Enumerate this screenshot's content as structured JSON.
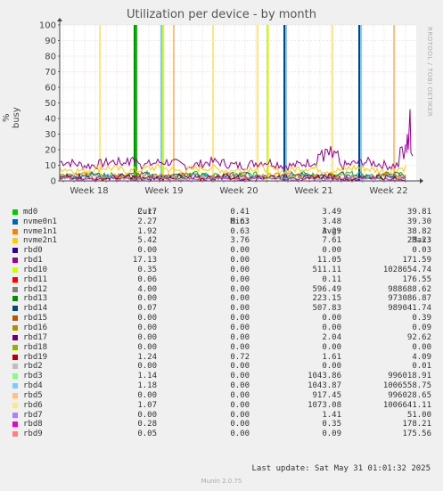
{
  "chart_data": {
    "type": "line",
    "title": "Utilization per device - by month",
    "ylabel": "% busy",
    "ylim": [
      0,
      100
    ],
    "yticks": [
      0,
      10,
      20,
      30,
      40,
      50,
      60,
      70,
      80,
      90,
      100
    ],
    "xticks": [
      "Week 18",
      "Week 19",
      "Week 20",
      "Week 21",
      "Week 22"
    ],
    "grid": true,
    "legend_columns": [
      "Cur:",
      "Min:",
      "Avg:",
      "Max:"
    ],
    "series": [
      {
        "name": "md0",
        "color": "#00cc00",
        "cur": "2.17",
        "min": "0.41",
        "avg": "3.49",
        "max": "39.81"
      },
      {
        "name": "nvme0n1",
        "color": "#0066b3",
        "cur": "2.27",
        "min": "0.63",
        "avg": "3.48",
        "max": "39.30"
      },
      {
        "name": "nvme1n1",
        "color": "#ff8000",
        "cur": "1.92",
        "min": "0.63",
        "avg": "3.29",
        "max": "38.82"
      },
      {
        "name": "nvme2n1",
        "color": "#ffcc00",
        "cur": "5.42",
        "min": "3.76",
        "avg": "7.61",
        "max": "23.23"
      },
      {
        "name": "rbd0",
        "color": "#330099",
        "cur": "0.00",
        "min": "0.00",
        "avg": "0.00",
        "max": "0.03"
      },
      {
        "name": "rbd1",
        "color": "#990099",
        "cur": "17.13",
        "min": "0.00",
        "avg": "11.05",
        "max": "171.59"
      },
      {
        "name": "rbd10",
        "color": "#ccff00",
        "cur": "0.35",
        "min": "0.00",
        "avg": "511.11",
        "max": "1028654.74"
      },
      {
        "name": "rbd11",
        "color": "#ff0000",
        "cur": "0.06",
        "min": "0.00",
        "avg": "0.11",
        "max": "176.55"
      },
      {
        "name": "rbd12",
        "color": "#808080",
        "cur": "4.00",
        "min": "0.00",
        "avg": "596.49",
        "max": "988688.62"
      },
      {
        "name": "rbd13",
        "color": "#008f00",
        "cur": "0.00",
        "min": "0.00",
        "avg": "223.15",
        "max": "973086.87"
      },
      {
        "name": "rbd14",
        "color": "#00487d",
        "cur": "0.07",
        "min": "0.00",
        "avg": "507.83",
        "max": "989041.74"
      },
      {
        "name": "rbd15",
        "color": "#b35a00",
        "cur": "0.00",
        "min": "0.00",
        "avg": "0.00",
        "max": "0.39"
      },
      {
        "name": "rbd16",
        "color": "#b38f00",
        "cur": "0.00",
        "min": "0.00",
        "avg": "0.00",
        "max": "0.09"
      },
      {
        "name": "rbd17",
        "color": "#6b006b",
        "cur": "0.00",
        "min": "0.00",
        "avg": "2.04",
        "max": "92.62"
      },
      {
        "name": "rbd18",
        "color": "#8fb300",
        "cur": "0.00",
        "min": "0.00",
        "avg": "0.00",
        "max": "0.00"
      },
      {
        "name": "rbd19",
        "color": "#b30000",
        "cur": "1.24",
        "min": "0.72",
        "avg": "1.61",
        "max": "4.09"
      },
      {
        "name": "rbd2",
        "color": "#bebebe",
        "cur": "0.00",
        "min": "0.00",
        "avg": "0.00",
        "max": "0.01"
      },
      {
        "name": "rbd3",
        "color": "#80ff80",
        "cur": "1.14",
        "min": "0.00",
        "avg": "1043.86",
        "max": "996018.91"
      },
      {
        "name": "rbd4",
        "color": "#80c9ff",
        "cur": "1.18",
        "min": "0.00",
        "avg": "1043.87",
        "max": "1006558.75"
      },
      {
        "name": "rbd5",
        "color": "#ffc080",
        "cur": "0.00",
        "min": "0.00",
        "avg": "917.45",
        "max": "996028.65"
      },
      {
        "name": "rbd6",
        "color": "#ffe680",
        "cur": "1.07",
        "min": "0.00",
        "avg": "1073.08",
        "max": "1006641.11"
      },
      {
        "name": "rbd7",
        "color": "#aa80ff",
        "cur": "0.00",
        "min": "0.00",
        "avg": "1.41",
        "max": "51.00"
      },
      {
        "name": "rbd8",
        "color": "#ee00cc",
        "cur": "0.28",
        "min": "0.00",
        "avg": "0.35",
        "max": "178.21"
      },
      {
        "name": "rbd9",
        "color": "#ff8080",
        "cur": "0.05",
        "min": "0.00",
        "avg": "0.09",
        "max": "175.56"
      }
    ]
  },
  "watermark": "RRDTOOL / TOBI OETIKER",
  "last_update": "Last update: Sat May 31 01:01:32 2025",
  "munin_version": "Munin 2.0.75"
}
